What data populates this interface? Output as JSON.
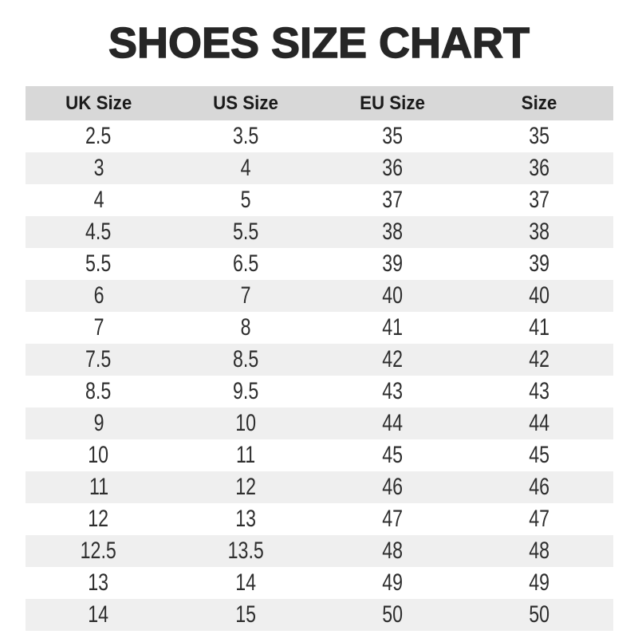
{
  "page": {
    "title": "SHOES SIZE CHART"
  },
  "colors": {
    "title_color": "#262626",
    "header_bg": "#d8d8d8",
    "header_text": "#1b1b1b",
    "stripe_bg": "#efefef",
    "row_bg": "#ffffff",
    "cell_text": "#2e2e2e"
  },
  "chart_data": {
    "type": "table",
    "title": "SHOES SIZE CHART",
    "columns": [
      "UK Size",
      "US Size",
      "EU Size",
      "Size"
    ],
    "rows": [
      [
        "2.5",
        "3.5",
        "35",
        "35"
      ],
      [
        "3",
        "4",
        "36",
        "36"
      ],
      [
        "4",
        "5",
        "37",
        "37"
      ],
      [
        "4.5",
        "5.5",
        "38",
        "38"
      ],
      [
        "5.5",
        "6.5",
        "39",
        "39"
      ],
      [
        "6",
        "7",
        "40",
        "40"
      ],
      [
        "7",
        "8",
        "41",
        "41"
      ],
      [
        "7.5",
        "8.5",
        "42",
        "42"
      ],
      [
        "8.5",
        "9.5",
        "43",
        "43"
      ],
      [
        "9",
        "10",
        "44",
        "44"
      ],
      [
        "10",
        "11",
        "45",
        "45"
      ],
      [
        "11",
        "12",
        "46",
        "46"
      ],
      [
        "12",
        "13",
        "47",
        "47"
      ],
      [
        "12.5",
        "13.5",
        "48",
        "48"
      ],
      [
        "13",
        "14",
        "49",
        "49"
      ],
      [
        "14",
        "15",
        "50",
        "50"
      ]
    ],
    "layout": {
      "striped_rows": "even rows shaded",
      "header_background": "#d8d8d8",
      "stripe_background": "#efefef",
      "alignment": "center"
    }
  }
}
